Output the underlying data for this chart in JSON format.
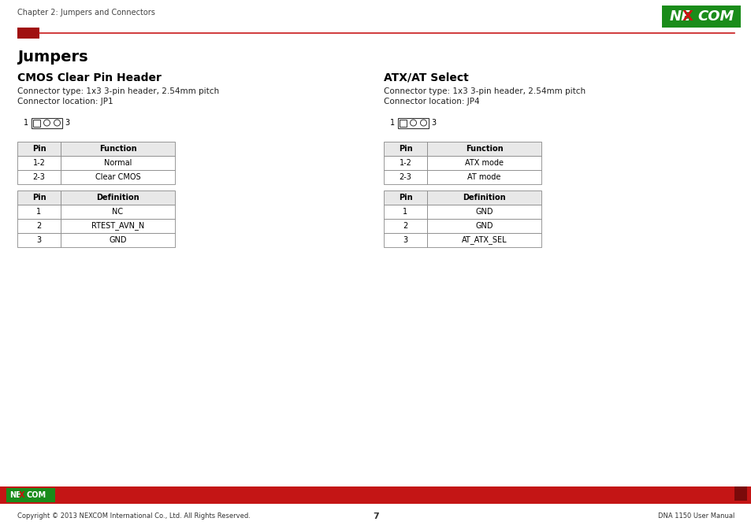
{
  "page_title": "Chapter 2: Jumpers and Connectors",
  "main_heading": "Jumpers",
  "left_section": {
    "heading": "CMOS Clear Pin Header",
    "connector_type": "Connector type: 1x3 3-pin header, 2.54mm pitch",
    "connector_location": "Connector location: JP1",
    "function_table_headers": [
      "Pin",
      "Function"
    ],
    "function_table_rows": [
      [
        "1-2",
        "Normal"
      ],
      [
        "2-3",
        "Clear CMOS"
      ]
    ],
    "definition_table_headers": [
      "Pin",
      "Definition"
    ],
    "definition_table_rows": [
      [
        "1",
        "NC"
      ],
      [
        "2",
        "RTEST_AVN_N"
      ],
      [
        "3",
        "GND"
      ]
    ]
  },
  "right_section": {
    "heading": "ATX/AT Select",
    "connector_type": "Connector type: 1x3 3-pin header, 2.54mm pitch",
    "connector_location": "Connector location: JP4",
    "function_table_headers": [
      "Pin",
      "Function"
    ],
    "function_table_rows": [
      [
        "1-2",
        "ATX mode"
      ],
      [
        "2-3",
        "AT mode"
      ]
    ],
    "definition_table_headers": [
      "Pin",
      "Definition"
    ],
    "definition_table_rows": [
      [
        "1",
        "GND"
      ],
      [
        "2",
        "GND"
      ],
      [
        "3",
        "AT_ATX_SEL"
      ]
    ]
  },
  "footer_copyright": "Copyright © 2013 NEXCOM International Co., Ltd. All Rights Reserved.",
  "footer_page": "7",
  "footer_manual": "DNA 1150 User Manual",
  "header_line_color": "#C8181A",
  "header_rect_color": "#A01010",
  "footer_bar_color": "#C41515",
  "bg_color": "#ffffff",
  "table_border_color": "#888888",
  "table_header_bg": "#e8e8e8",
  "nexcom_green": "#1a8c1a"
}
